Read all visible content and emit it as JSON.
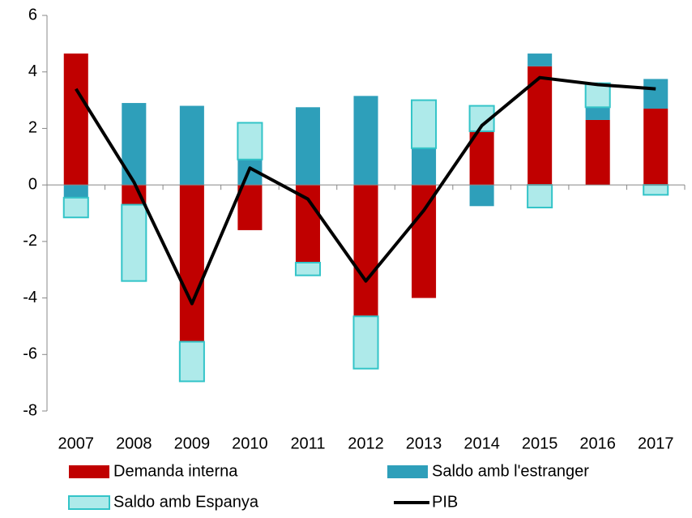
{
  "chart_data": {
    "type": "bar",
    "stacked": true,
    "categories": [
      "2007",
      "2008",
      "2009",
      "2010",
      "2011",
      "2012",
      "2013",
      "2014",
      "2015",
      "2016",
      "2017"
    ],
    "series": [
      {
        "name": "Demanda interna",
        "color": "#c00000",
        "values": [
          4.65,
          -0.7,
          -5.55,
          -1.6,
          -2.75,
          -4.65,
          -4.0,
          1.9,
          4.2,
          2.3,
          2.7
        ]
      },
      {
        "name": "Saldo amb l'estranger",
        "color": "#2e9fba",
        "values": [
          -0.45,
          2.9,
          2.8,
          0.9,
          2.75,
          3.15,
          1.3,
          -0.75,
          0.45,
          0.45,
          1.05
        ]
      },
      {
        "name": "Saldo amb Espanya",
        "color": "#aeeaea",
        "edge": "#33c4c8",
        "values": [
          -0.7,
          -2.7,
          -1.4,
          1.3,
          -0.45,
          -1.85,
          1.7,
          0.9,
          -0.8,
          0.85,
          -0.35
        ]
      },
      {
        "name": "PIB",
        "type": "line",
        "color": "#000000",
        "values": [
          3.4,
          0.1,
          -4.2,
          0.6,
          -0.5,
          -3.4,
          -0.9,
          2.1,
          3.8,
          3.55,
          3.4
        ]
      }
    ],
    "ylim": [
      -8,
      6
    ],
    "yticks": [
      -8,
      -6,
      -4,
      -2,
      0,
      2,
      4,
      6
    ],
    "grid": false,
    "legend": "bottom"
  }
}
